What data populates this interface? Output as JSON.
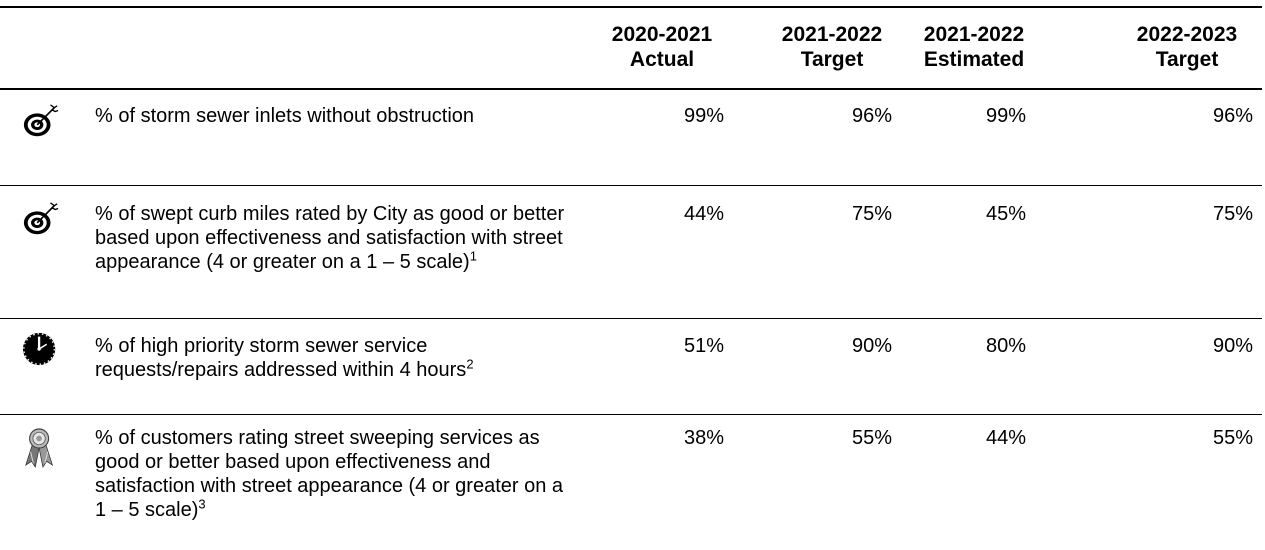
{
  "columns": [
    {
      "line1": "2020-2021",
      "line2": "Actual"
    },
    {
      "line1": "2021-2022",
      "line2": "Target"
    },
    {
      "line1": "2021-2022",
      "line2": "Estimated"
    },
    {
      "line1": "2022-2023",
      "line2": "Target"
    }
  ],
  "rows": [
    {
      "icon": "target-icon",
      "measure": "% of storm sewer inlets without obstruction",
      "footnote": "",
      "values": [
        "99%",
        "96%",
        "99%",
        "96%"
      ]
    },
    {
      "icon": "target-icon",
      "measure": "% of swept curb miles rated by City as good or better based upon effectiveness and satisfaction with street appearance (4 or greater on a 1 – 5 scale)",
      "footnote": "1",
      "values": [
        "44%",
        "75%",
        "45%",
        "75%"
      ]
    },
    {
      "icon": "clock-icon",
      "measure": "% of high priority storm sewer service requests/repairs addressed within 4 hours",
      "footnote": "2",
      "values": [
        "51%",
        "90%",
        "80%",
        "90%"
      ]
    },
    {
      "icon": "award-ribbon-icon",
      "measure": "% of customers rating street sweeping services as good or better based upon effectiveness and satisfaction with street appearance (4 or greater on a 1 – 5 scale)",
      "footnote": "3",
      "values": [
        "38%",
        "55%",
        "44%",
        "55%"
      ]
    }
  ]
}
